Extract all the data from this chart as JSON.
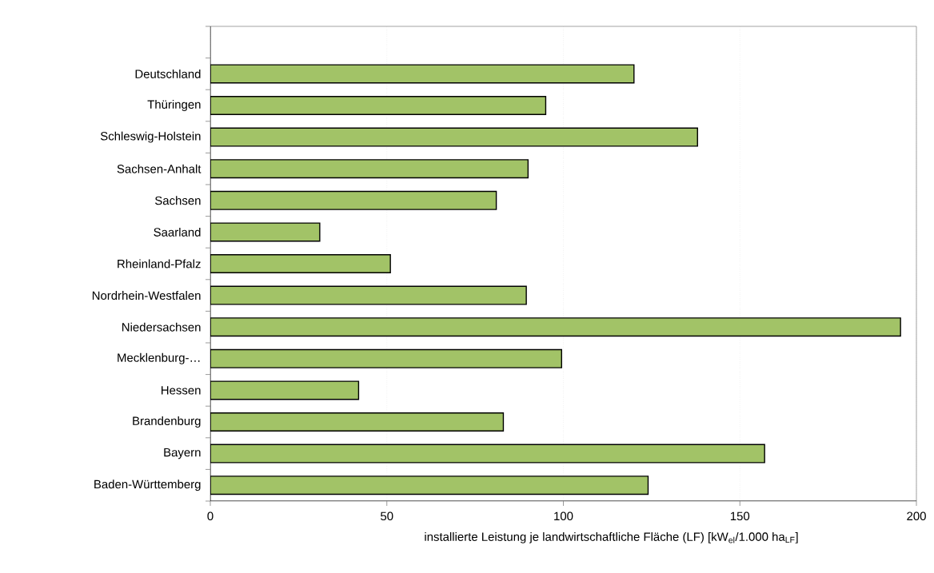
{
  "chart_data": {
    "type": "bar",
    "orientation": "horizontal",
    "categories": [
      null,
      "Deutschland",
      "Thüringen",
      "Schleswig-Holstein",
      "Sachsen-Anhalt",
      "Sachsen",
      "Saarland",
      "Rheinland-Pfalz",
      "Nordrhein-Westfalen",
      "Niedersachsen",
      "Mecklenburg-…",
      "Hessen",
      "Brandenburg",
      "Bayern",
      "Baden-Württemberg"
    ],
    "values": [
      null,
      120,
      95,
      138,
      90,
      81,
      31,
      51,
      89.5,
      195.5,
      99.5,
      42,
      83,
      157,
      124
    ],
    "color": "#a2c367",
    "xlabel": "installierte Leistung je landwirtschaftliche Fläche (LF)  [kW$_{el}$/1.000 ha$_{LF}$]",
    "xlim": [
      0,
      200
    ],
    "xticks": [
      0,
      50,
      100,
      150,
      200
    ],
    "grid": "x"
  }
}
